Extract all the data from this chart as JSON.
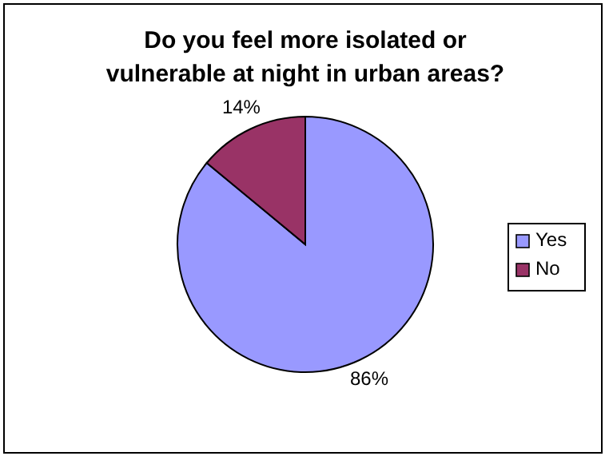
{
  "chart_data": {
    "type": "pie",
    "title": "Do you feel more isolated or vulnerable at night in urban areas?",
    "categories": [
      "Yes",
      "No"
    ],
    "values": [
      86,
      14
    ],
    "colors": [
      "#9999ff",
      "#993366"
    ],
    "value_labels": [
      "86%",
      "14%"
    ],
    "legend": "right"
  }
}
